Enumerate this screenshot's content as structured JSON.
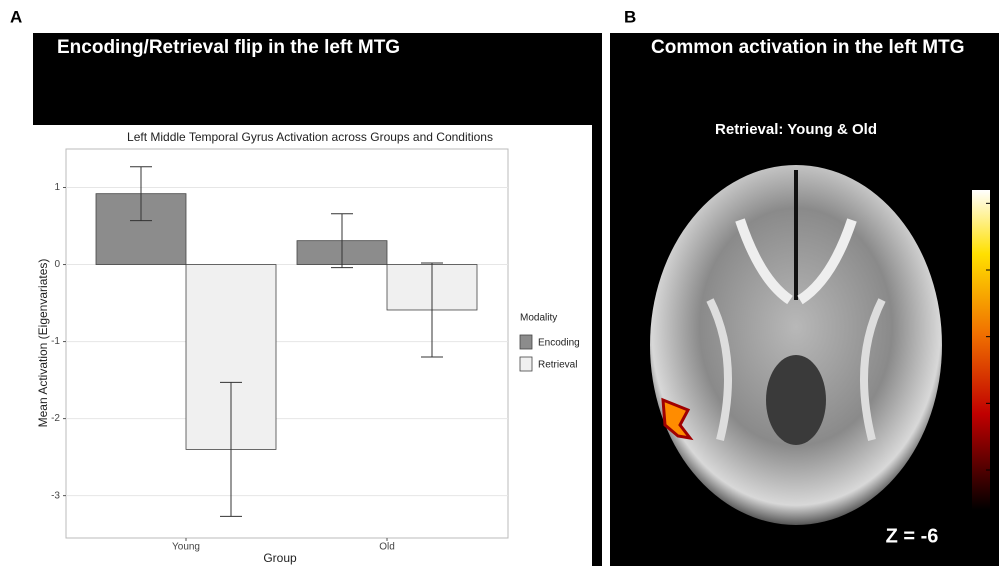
{
  "panel_labels": [
    "A",
    "B"
  ],
  "chart_data": [
    {
      "type": "bar",
      "panel_title": "Encoding/Retrieval flip in the left MTG",
      "title": "Left Middle Temporal Gyrus Activation across Groups and Conditions",
      "x_label": "Group",
      "y_label": "Mean Activation (Eigenvariates)",
      "categories": [
        "Young",
        "Old"
      ],
      "legend_title": "Modality",
      "series": [
        {
          "name": "Encoding",
          "color": "#8c8c8c",
          "values": [
            0.92,
            0.31
          ],
          "errors": [
            0.35,
            0.35
          ]
        },
        {
          "name": "Retrieval",
          "color": "#f0f0f0",
          "values": [
            -2.4,
            -0.59
          ],
          "errors": [
            0.87,
            0.61
          ]
        }
      ],
      "ylim": [
        -3.55,
        1.5
      ],
      "yticks": [
        -3,
        -2,
        -1,
        0,
        1
      ],
      "grid": true
    },
    {
      "type": "colorbar",
      "panel_title": "Common activation in the left MTG",
      "subtitle": "Retrieval: Young & Old",
      "annotation": "Z = -6",
      "ylim": [
        3.2,
        5.6
      ],
      "yticks": [
        3.5,
        4.0,
        4.5,
        5.0,
        5.5
      ]
    }
  ]
}
